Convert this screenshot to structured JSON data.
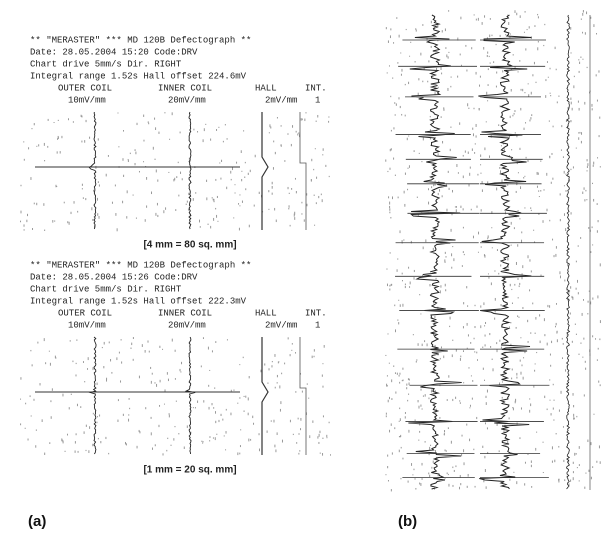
{
  "panel_a": {
    "label": "(a)",
    "records": [
      {
        "lines": [
          "**  \"MERASTER\"  ***  MD 120B Defectograph  **",
          "Date: 28.05.2004     15:20     Code:DRV",
          "Chart drive    5mm/s      Dir. RIGHT",
          "Integral range 1.52s   Hall offset 224.6mV"
        ],
        "channels": [
          {
            "name": "OUTER COIL",
            "scale": "10mV/mm"
          },
          {
            "name": "INNER COIL",
            "scale": "20mV/mm"
          },
          {
            "name": "HALL",
            "scale": "2mV/mm"
          },
          {
            "name": "INT.",
            "scale": "1"
          }
        ],
        "caption": "[4 mm = 80 sq. mm]"
      },
      {
        "lines": [
          "**  \"MERASTER\"  ***  MD 120B Defectograph  **",
          "Date: 28.05.2004     15:26     Code:DRV",
          "Chart drive    5mm/s      Dir. RIGHT",
          "Integral range 1.52s   Hall offset 222.3mV"
        ],
        "channels": [
          {
            "name": "OUTER COIL",
            "scale": "10mV/mm"
          },
          {
            "name": "INNER COIL",
            "scale": "20mV/mm"
          },
          {
            "name": "HALL",
            "scale": "2mV/mm"
          },
          {
            "name": "INT.",
            "scale": "1"
          }
        ],
        "caption": "[1 mm = 20 sq. mm]"
      }
    ]
  },
  "panel_b": {
    "label": "(b)"
  }
}
